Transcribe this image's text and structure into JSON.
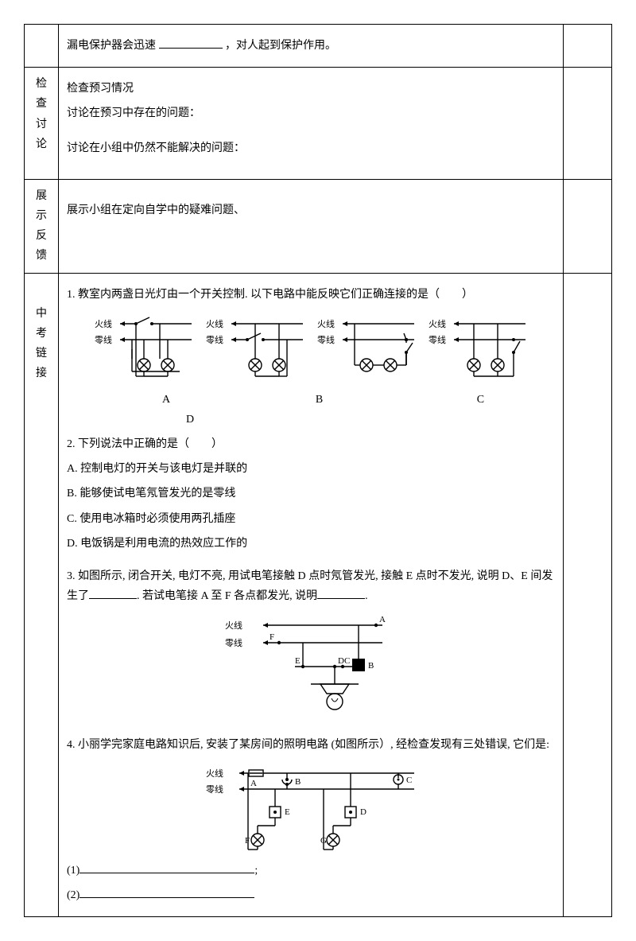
{
  "row0": {
    "text": "漏电保护器会迅速",
    "text2": "，对人起到保护作用。"
  },
  "row1": {
    "label_chars": [
      "检",
      "查",
      "讨",
      "论"
    ],
    "l1": "检查预习情况",
    "l2": "讨论在预习中存在的问题：",
    "l3": "讨论在小组中仍然不能解决的问题："
  },
  "row2": {
    "label_chars": [
      "展",
      "示",
      "反",
      "馈"
    ],
    "l1": "展示小组在定向自学中的疑难问题、"
  },
  "row3": {
    "label_chars": [
      "中",
      "考",
      "链",
      "接"
    ],
    "q1": "1. 教室内两盏日光灯由一个开关控制. 以下电路中能反映它们正确连接的是（　　）",
    "opt_labels": "A　　　　　　B　　　　　　C　　　　　　D",
    "q2": "2. 下列说法中正确的是（　　）",
    "q2a": "A. 控制电灯的开关与该电灯是并联的",
    "q2b": "B. 能够使试电笔氖管发光的是零线",
    "q2c": "C. 使用电冰箱时必须使用两孔插座",
    "q2d": "D. 电饭锅是利用电流的热效应工作的",
    "q3a": "3. 如图所示, 闭合开关, 电灯不亮, 用试电笔接触 D 点时氖管发光, 接触 E 点时不发光, 说明 D、E 间发生了",
    "q3b": ". 若试电笔接 A 至 F 各点都发光, 说明",
    "q3c": ".",
    "q4a": "4. 小丽学完家庭电路知识后, 安装了某房间的照明电路 (如图所示）, 经检查发现有三处错误, 它们是:",
    "a1": "(1)",
    "a1end": ";",
    "a2": "(2)",
    "labels": {
      "hot": "火线",
      "neutral": "零线",
      "A": "A",
      "B": "B",
      "C": "C",
      "D": "D",
      "E": "E",
      "F": "F",
      "G": "G"
    },
    "circuit": {
      "line_color": "#000000",
      "bg": "#ffffff",
      "font_size": 11,
      "lamp_r": 8,
      "stroke_w": 1.4
    }
  }
}
